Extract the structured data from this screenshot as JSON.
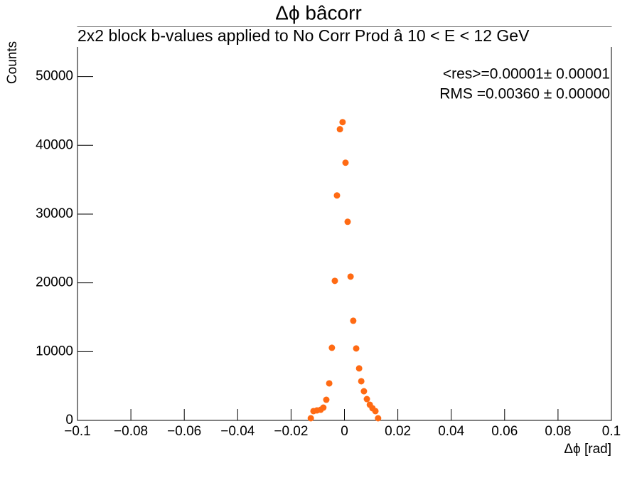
{
  "chart_data": {
    "type": "scatter",
    "title": "Δϕ bâcorr",
    "subtitle": "2x2 block b-values applied to No Corr Prod   â   10 < E < 12 GeV",
    "x_label": "Δϕ  [rad]",
    "y_label": "Counts",
    "annotations": [
      "<res>=0.00001± 0.00001",
      "RMS =0.00360 ± 0.00000"
    ],
    "color": "#ff6a13",
    "x": [
      -0.0126,
      -0.0116,
      -0.0103,
      -0.0089,
      -0.0079,
      -0.0068,
      -0.0057,
      -0.0047,
      -0.0036,
      -0.0028,
      -0.0017,
      -0.0007,
      0.0004,
      0.0012,
      0.0023,
      0.0033,
      0.0044,
      0.0055,
      0.0063,
      0.0073,
      0.0084,
      0.0095,
      0.0105,
      0.0116,
      0.0126
    ],
    "values": [
      310,
      1350,
      1450,
      1550,
      1860,
      3000,
      5380,
      10560,
      20290,
      32710,
      42340,
      43370,
      37470,
      28880,
      20910,
      14490,
      10460,
      7560,
      5690,
      4240,
      3100,
      2280,
      1760,
      1350,
      310
    ],
    "xlim": [
      -0.1,
      0.1
    ],
    "xticks": [
      {
        "value": -0.1,
        "label": "−0.1"
      },
      {
        "value": -0.08,
        "label": "−0.08"
      },
      {
        "value": -0.06,
        "label": "−0.06"
      },
      {
        "value": -0.04,
        "label": "−0.04"
      },
      {
        "value": -0.02,
        "label": "−0.02"
      },
      0,
      0.02,
      0.04,
      0.06,
      0.08,
      0.1
    ],
    "ylim": [
      0,
      57200
    ],
    "yticks": [
      0,
      10000,
      20000,
      30000,
      40000,
      50000
    ],
    "grid": false
  }
}
